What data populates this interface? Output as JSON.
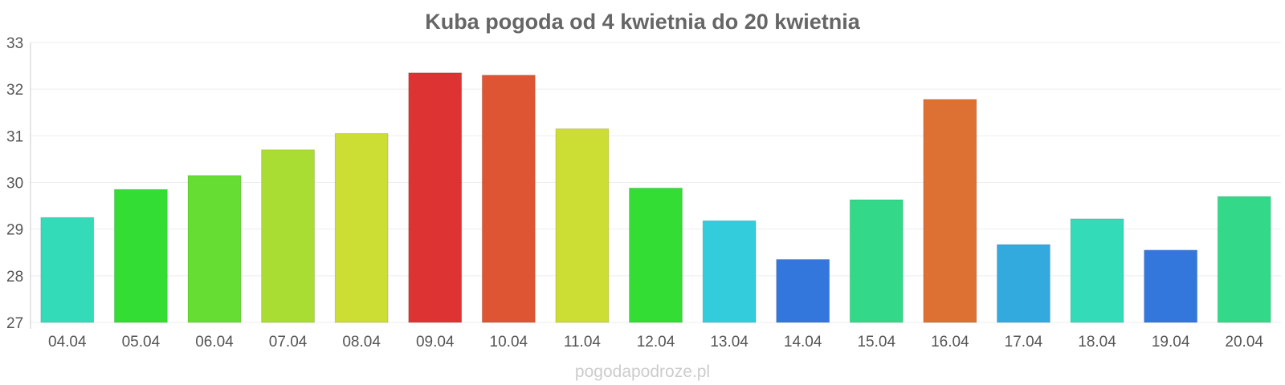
{
  "chart_data": {
    "type": "bar",
    "title": "Kuba pogoda od 4 kwietnia do 20 kwietnia",
    "xlabel": "",
    "ylabel": "",
    "categories": [
      "04.04",
      "05.04",
      "06.04",
      "07.04",
      "08.04",
      "09.04",
      "10.04",
      "11.04",
      "12.04",
      "13.04",
      "14.04",
      "15.04",
      "16.04",
      "17.04",
      "18.04",
      "19.04",
      "20.04"
    ],
    "values": [
      29.25,
      29.85,
      30.15,
      30.7,
      31.05,
      32.35,
      32.3,
      31.15,
      29.88,
      29.18,
      28.35,
      29.63,
      31.78,
      28.67,
      29.22,
      28.55,
      29.7
    ],
    "colors": [
      "#33dbb8",
      "#33dd33",
      "#66dd33",
      "#aadd33",
      "#ccdd33",
      "#dd3333",
      "#dd5533",
      "#ccdd33",
      "#33dd33",
      "#33ccdd",
      "#3377dd",
      "#33d988",
      "#dd7033",
      "#33aadd",
      "#33dbb8",
      "#3377dd",
      "#33d988"
    ],
    "yticks": [
      "27",
      "28",
      "29",
      "30",
      "31",
      "32",
      "33"
    ],
    "ylim": [
      27,
      33
    ],
    "grid": true,
    "legend": "none"
  },
  "watermark": "pogodapodroze.pl"
}
